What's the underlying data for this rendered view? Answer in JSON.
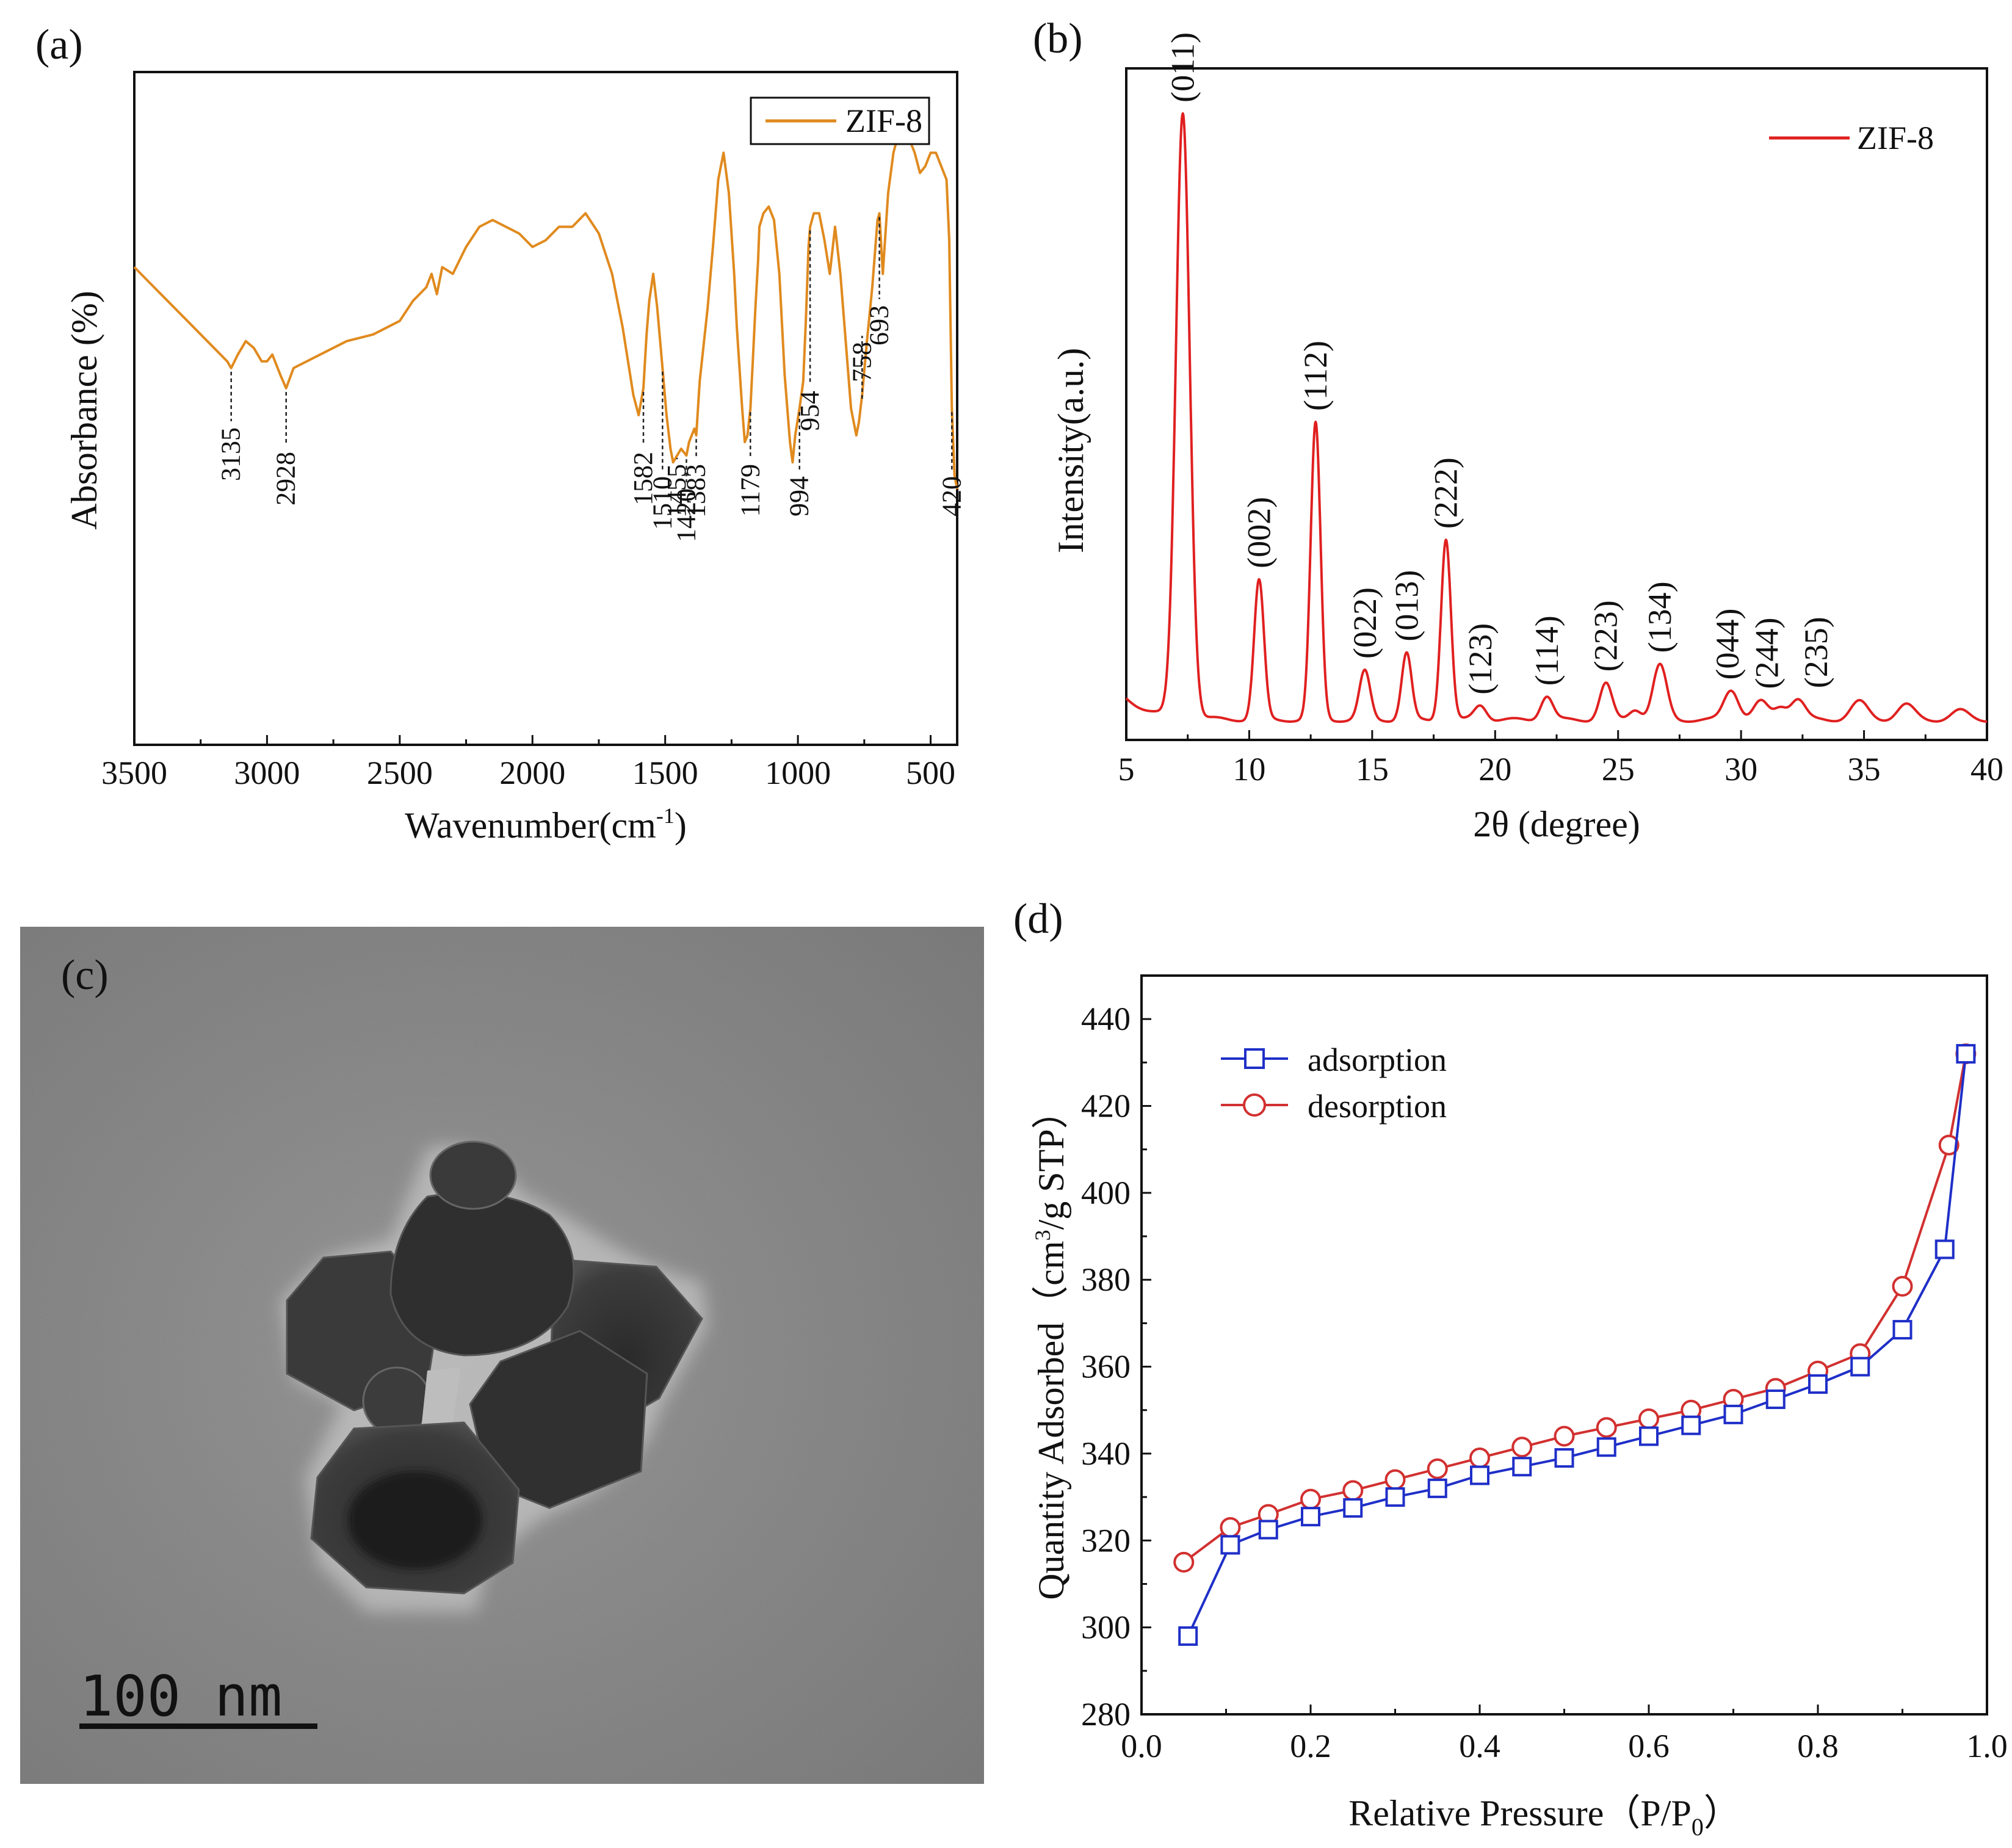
{
  "chart_data": [
    {
      "id": "a",
      "type": "line",
      "panel_label": "(a)",
      "xlabel": "Wavenumber(cm-1)",
      "xlabel_main": "Wavenumber(cm",
      "xlabel_sup": "-1",
      "xlabel_close": ")",
      "ylabel": "Absorbance (%)",
      "xlim": [
        3500,
        400
      ],
      "ylim": [
        0,
        100
      ],
      "x_ticks": [
        3500,
        3000,
        2500,
        2000,
        1500,
        1000,
        500
      ],
      "legend": "ZIF-8",
      "legend_position": "top-right",
      "color": "#E08A1E",
      "series": [
        {
          "name": "ZIF-8",
          "x": [
            3500,
            3400,
            3300,
            3200,
            3150,
            3135,
            3110,
            3080,
            3050,
            3020,
            3000,
            2980,
            2950,
            2928,
            2900,
            2850,
            2800,
            2700,
            2600,
            2500,
            2450,
            2400,
            2380,
            2360,
            2340,
            2300,
            2250,
            2200,
            2150,
            2100,
            2050,
            2000,
            1950,
            1900,
            1850,
            1800,
            1750,
            1700,
            1660,
            1640,
            1620,
            1600,
            1582,
            1570,
            1560,
            1545,
            1530,
            1510,
            1495,
            1480,
            1470,
            1455,
            1440,
            1420,
            1410,
            1400,
            1390,
            1383,
            1370,
            1340,
            1320,
            1300,
            1280,
            1260,
            1240,
            1230,
            1210,
            1200,
            1190,
            1179,
            1170,
            1160,
            1150,
            1145,
            1130,
            1110,
            1090,
            1070,
            1050,
            1030,
            1020,
            1010,
            994,
            980,
            970,
            960,
            954,
            940,
            920,
            900,
            880,
            860,
            840,
            820,
            800,
            780,
            770,
            758,
            740,
            720,
            700,
            693,
            680,
            660,
            640,
            620,
            600,
            580,
            560,
            540,
            520,
            500,
            480,
            460,
            440,
            430,
            420,
            410,
            400
          ],
          "y": [
            71,
            67,
            63,
            59,
            57,
            56,
            58,
            60,
            59,
            57,
            57,
            58,
            55,
            53,
            56,
            57,
            58,
            60,
            61,
            63,
            66,
            68,
            70,
            67,
            71,
            70,
            74,
            77,
            78,
            77,
            76,
            74,
            75,
            77,
            77,
            79,
            76,
            70,
            62,
            57,
            52,
            49,
            53,
            61,
            66,
            70,
            65,
            56,
            49,
            44,
            42,
            43,
            44,
            43,
            45,
            46,
            47,
            46,
            54,
            65,
            74,
            84,
            88,
            82,
            70,
            62,
            50,
            45,
            46,
            50,
            57,
            65,
            72,
            77,
            79,
            80,
            78,
            70,
            55,
            45,
            42,
            46,
            50,
            54,
            63,
            74,
            77,
            79,
            79,
            75,
            70,
            77,
            70,
            60,
            50,
            46,
            48,
            52,
            60,
            68,
            78,
            79,
            70,
            82,
            88,
            91,
            92,
            90,
            88,
            85,
            86,
            88,
            88,
            86,
            84,
            75,
            50,
            40,
            38
          ]
        }
      ],
      "annotations": [
        {
          "label": "3135",
          "x": 3135
        },
        {
          "label": "2928",
          "x": 2928
        },
        {
          "label": "1582",
          "x": 1582
        },
        {
          "label": "1510",
          "x": 1510
        },
        {
          "label": "1455",
          "x": 1455
        },
        {
          "label": "1420",
          "x": 1420
        },
        {
          "label": "1383",
          "x": 1383
        },
        {
          "label": "1179",
          "x": 1179
        },
        {
          "label": "994",
          "x": 994
        },
        {
          "label": "954",
          "x": 954
        },
        {
          "label": "758",
          "x": 758
        },
        {
          "label": "693",
          "x": 693
        },
        {
          "label": "420",
          "x": 420
        }
      ]
    },
    {
      "id": "b",
      "type": "line",
      "panel_label": "(b)",
      "xlabel": "2θ (degree)",
      "ylabel": "Intensity(a.u.)",
      "xlim": [
        5,
        40
      ],
      "ylim": [
        0,
        100
      ],
      "x_ticks": [
        5,
        10,
        15,
        20,
        25,
        30,
        35,
        40
      ],
      "legend": "ZIF-8",
      "legend_position": "top-right",
      "color": "#E02020",
      "baseline": 1.5,
      "peaks": [
        {
          "label": "(011)",
          "x": 7.3,
          "height": 100,
          "width": 0.28
        },
        {
          "label": "(002)",
          "x": 10.4,
          "height": 23,
          "width": 0.2
        },
        {
          "label": "(112)",
          "x": 12.7,
          "height": 49,
          "width": 0.2
        },
        {
          "label": "(022)",
          "x": 14.7,
          "height": 8,
          "width": 0.22
        },
        {
          "label": "(013)",
          "x": 16.4,
          "height": 11,
          "width": 0.2
        },
        {
          "label": "(222)",
          "x": 18.0,
          "height": 30,
          "width": 0.2
        },
        {
          "label": "(123)",
          "x": 19.4,
          "height": 2.5,
          "width": 0.25
        },
        {
          "label": "(114)",
          "x": 22.1,
          "height": 4,
          "width": 0.25
        },
        {
          "label": "(223)",
          "x": 24.5,
          "height": 6,
          "width": 0.25
        },
        {
          "label": "(134)",
          "x": 26.7,
          "height": 9,
          "width": 0.28
        },
        {
          "label": "(044)",
          "x": 29.6,
          "height": 5,
          "width": 0.3
        },
        {
          "label": "(244)",
          "x": 30.8,
          "height": 3,
          "width": 0.3
        },
        {
          "label": "(235)",
          "x": 32.3,
          "height": 3.5,
          "width": 0.3
        }
      ],
      "minor_peaks": [
        {
          "x": 25.7,
          "height": 1.8,
          "width": 0.25
        },
        {
          "x": 31.6,
          "height": 2,
          "width": 0.25
        },
        {
          "x": 34.8,
          "height": 3,
          "width": 0.35
        },
        {
          "x": 36.7,
          "height": 2.5,
          "width": 0.35
        },
        {
          "x": 38.9,
          "height": 1.5,
          "width": 0.35
        }
      ]
    },
    {
      "id": "d",
      "type": "line",
      "panel_label": "(d)",
      "xlabel": "Relative Pressure（P/P0）",
      "xlabel_main": "Relative Pressure（P/P",
      "xlabel_sub": "0",
      "xlabel_close": "）",
      "ylabel": "Quantity Adsorbed（cm3/g STP）",
      "ylabel_main": "Quantity Adsorbed（cm",
      "ylabel_sup": "3",
      "ylabel_close": "/g STP）",
      "xlim": [
        0.0,
        1.0
      ],
      "ylim": [
        280,
        450
      ],
      "x_ticks": [
        0.0,
        0.2,
        0.4,
        0.6,
        0.8,
        1.0
      ],
      "x_tick_labels": [
        "0.0",
        "0.2",
        "0.4",
        "0.6",
        "0.8",
        "1.0"
      ],
      "y_ticks": [
        280,
        300,
        320,
        340,
        360,
        380,
        400,
        420,
        440
      ],
      "legend_position": "top-left",
      "series": [
        {
          "name": "adsorption",
          "color": "#1F2FC8",
          "marker": "square",
          "x": [
            0.055,
            0.105,
            0.15,
            0.2,
            0.25,
            0.3,
            0.35,
            0.4,
            0.45,
            0.5,
            0.55,
            0.6,
            0.65,
            0.7,
            0.75,
            0.8,
            0.85,
            0.9,
            0.95,
            0.975
          ],
          "y": [
            298,
            319,
            322.5,
            325.5,
            327.5,
            330,
            332,
            335,
            337,
            339,
            341.5,
            344,
            346.5,
            349,
            352.5,
            356,
            360,
            368.5,
            387,
            432
          ]
        },
        {
          "name": "desorption",
          "color": "#D23030",
          "marker": "circle",
          "x": [
            0.05,
            0.105,
            0.15,
            0.2,
            0.25,
            0.3,
            0.35,
            0.4,
            0.45,
            0.5,
            0.55,
            0.6,
            0.65,
            0.7,
            0.75,
            0.8,
            0.85,
            0.9,
            0.955,
            0.975
          ],
          "y": [
            315,
            323,
            326,
            329.5,
            331.5,
            334,
            336.5,
            339,
            341.5,
            344,
            346,
            348,
            350,
            352.5,
            355,
            359,
            363,
            378.5,
            411,
            432
          ]
        }
      ]
    }
  ],
  "tem": {
    "panel_label": "(c)",
    "scale_label": "100 nm"
  }
}
